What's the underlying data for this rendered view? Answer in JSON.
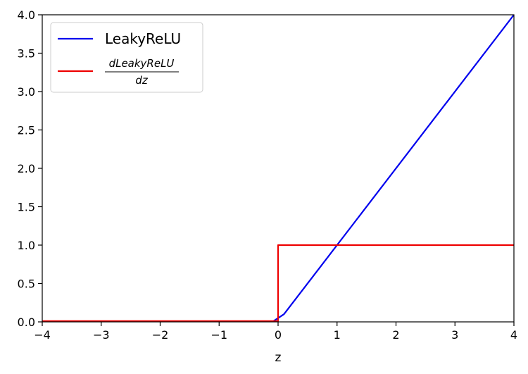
{
  "chart_data": {
    "type": "line",
    "title": "",
    "xlabel": "z",
    "ylabel": "",
    "xlim": [
      -4,
      4
    ],
    "ylim": [
      0,
      4
    ],
    "grid": false,
    "legend_position": "top-left",
    "x_ticks": [
      "−4",
      "−3",
      "−2",
      "−1",
      "0",
      "1",
      "2",
      "3",
      "4"
    ],
    "y_ticks": [
      "0.0",
      "0.5",
      "1.0",
      "1.5",
      "2.0",
      "2.5",
      "3.0",
      "3.5",
      "4.0"
    ],
    "series": [
      {
        "name": "LeakyReLU",
        "color": "#0000ee",
        "x": [
          -4,
          -0.1,
          0.1,
          4
        ],
        "y": [
          -0.04,
          -0.001,
          0.1,
          4.0
        ]
      },
      {
        "name_numerator": "dLeakyReLU",
        "name_denominator": "dz",
        "color": "#ee0000",
        "x": [
          -4,
          0,
          0,
          4
        ],
        "y": [
          0.01,
          0.01,
          1,
          1
        ]
      }
    ]
  }
}
